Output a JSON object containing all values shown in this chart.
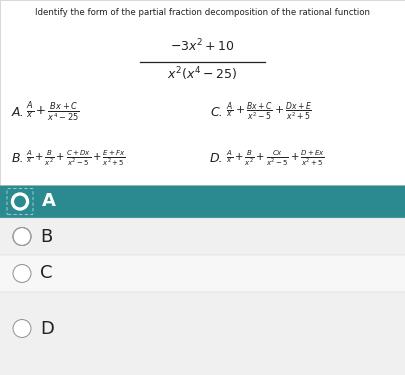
{
  "title": "Identify the form of the partial fraction decomposition of the rational function",
  "frac_num": "$-3x^2+10$",
  "frac_den": "$x^2(x^4-25)$",
  "optA_label": "A.",
  "optA_expr": "$\\frac{A}{x}+\\frac{Bx+C}{x^4-25}$",
  "optB_label": "B.",
  "optB_expr": "$\\frac{A}{x}+\\frac{B}{x^2}+\\frac{C+Dx}{x^2-5}+\\frac{E+Fx}{x^2+5}$",
  "optC_label": "C.",
  "optC_expr": "$\\frac{A}{x}+\\frac{Bx+C}{x^2-5}+\\frac{Dx+E}{x^2+5}$",
  "optD_label": "D.",
  "optD_expr": "$\\frac{A}{x}+\\frac{B}{x^2}+\\frac{Cx}{x^2-5}+\\frac{D+Ex}{x^2+5}$",
  "selected_label": "A",
  "teal_color": "#2a8a8f",
  "header_bg": "#ffffff",
  "row_bg_alt": "#f0f0f0",
  "row_bg_white": "#f7f7f7",
  "border_color": "#cccccc",
  "text_color": "#222222",
  "white": "#ffffff",
  "radio_border": "#999999"
}
